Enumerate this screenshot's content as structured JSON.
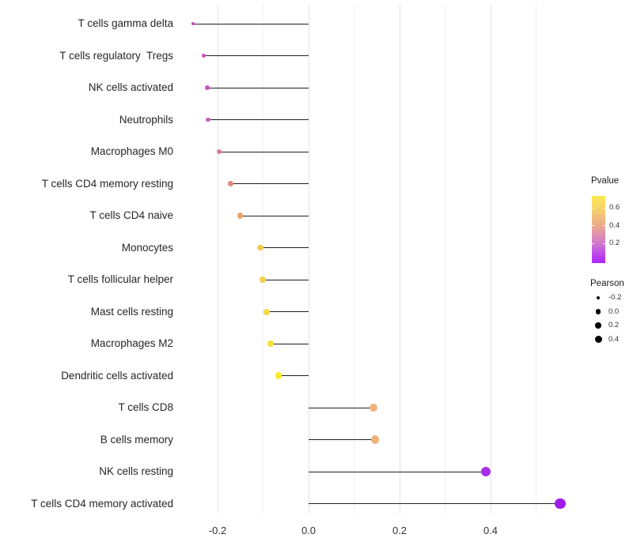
{
  "chart_data": {
    "type": "scatter",
    "variant": "lollipop",
    "title": "",
    "xlabel": "",
    "ylabel": "",
    "xlim": [
      -0.27,
      0.62
    ],
    "grid": "major and minor vertical gridlines, light gray, no axis lines, white background",
    "x_tick_labels": [
      "-0.2",
      "0.0",
      "0.2",
      "0.4"
    ],
    "x_tick_values": [
      -0.2,
      0.0,
      0.2,
      0.4
    ],
    "x_minor_tick_values": [
      -0.1,
      0.1,
      0.3,
      0.5
    ],
    "stem_color": "#1f1f1f",
    "categories": [
      "T cells gamma delta",
      "T cells regulatory  Tregs",
      "NK cells activated",
      "Neutrophils",
      "Macrophages M0",
      "T cells CD4 memory resting",
      "T cells CD4 naive",
      "Monocytes",
      "T cells follicular helper",
      "Mast cells resting",
      "Macrophages M2",
      "Dendritic cells activated",
      "T cells CD8",
      "B cells memory",
      "NK cells resting",
      "T cells CD4 memory activated"
    ],
    "series": [
      {
        "name": "Pearson",
        "values": [
          -0.25,
          -0.23,
          -0.22,
          -0.22,
          -0.2,
          -0.17,
          -0.15,
          -0.11,
          -0.1,
          -0.09,
          -0.08,
          -0.07,
          0.14,
          0.15,
          0.39,
          0.55
        ]
      },
      {
        "name": "Pvalue (estimated from color)",
        "values": [
          0.22,
          0.23,
          0.24,
          0.25,
          0.33,
          0.4,
          0.47,
          0.57,
          0.59,
          0.62,
          0.65,
          0.7,
          0.5,
          0.5,
          0.06,
          0.03
        ]
      }
    ],
    "points": [
      {
        "label": "T cells gamma delta",
        "pearson": -0.254,
        "pvalue": 0.22,
        "color": "#C04BBC",
        "radius": 2.2
      },
      {
        "label": "T cells regulatory  Tregs",
        "pearson": -0.23,
        "pvalue": 0.23,
        "color": "#C553BE",
        "radius": 2.6
      },
      {
        "label": "NK cells activated",
        "pearson": -0.223,
        "pvalue": 0.24,
        "color": "#C757BD",
        "radius": 2.8
      },
      {
        "label": "Neutrophils",
        "pearson": -0.221,
        "pvalue": 0.25,
        "color": "#C85FBA",
        "radius": 2.8
      },
      {
        "label": "Macrophages M0",
        "pearson": -0.196,
        "pvalue": 0.33,
        "color": "#D1799F",
        "radius": 3.1
      },
      {
        "label": "T cells CD4 memory resting",
        "pearson": -0.171,
        "pvalue": 0.4,
        "color": "#E08A81",
        "radius": 3.4
      },
      {
        "label": "T cells CD4 naive",
        "pearson": -0.15,
        "pvalue": 0.47,
        "color": "#ECA168",
        "radius": 3.6
      },
      {
        "label": "Monocytes",
        "pearson": -0.106,
        "pvalue": 0.57,
        "color": "#F2C94F",
        "radius": 3.8
      },
      {
        "label": "T cells follicular helper",
        "pearson": -0.101,
        "pvalue": 0.59,
        "color": "#F3D04A",
        "radius": 3.9
      },
      {
        "label": "Mast cells resting",
        "pearson": -0.092,
        "pvalue": 0.62,
        "color": "#F5D93F",
        "radius": 4.0
      },
      {
        "label": "Macrophages M2",
        "pearson": -0.083,
        "pvalue": 0.65,
        "color": "#F6E135",
        "radius": 4.1
      },
      {
        "label": "Dendritic cells activated",
        "pearson": -0.066,
        "pvalue": 0.7,
        "color": "#F8ED27",
        "radius": 4.3
      },
      {
        "label": "T cells CD8",
        "pearson": 0.143,
        "pvalue": 0.5,
        "color": "#EFB07D",
        "radius": 5.0
      },
      {
        "label": "B cells memory",
        "pearson": 0.146,
        "pvalue": 0.5,
        "color": "#EFB17C",
        "radius": 5.1
      },
      {
        "label": "NK cells resting",
        "pearson": 0.389,
        "pvalue": 0.06,
        "color": "#A82CE8",
        "radius": 6.0
      },
      {
        "label": "T cells CD4 memory activated",
        "pearson": 0.553,
        "pvalue": 0.03,
        "color": "#9E1BE8",
        "radius": 6.6
      }
    ]
  },
  "legend": {
    "pvalue": {
      "title": "Pvalue",
      "gradient_stops": [
        "#FBEA4F",
        "#F6D26B",
        "#ECA98E",
        "#D078CC",
        "#BB45EE",
        "#AC26F5"
      ],
      "gradient_positions": [
        0,
        19,
        45,
        71,
        88,
        100
      ],
      "ticks": [
        {
          "label": "0.6",
          "value": 0.6
        },
        {
          "label": "0.4",
          "value": 0.4
        },
        {
          "label": "0.2",
          "value": 0.2
        }
      ],
      "domain_top": 0.73,
      "domain_bottom": -0.025
    },
    "pearson": {
      "title": "Pearson",
      "dot_color": "#000000",
      "entries": [
        {
          "label": "-0.2",
          "diameter": 4.5
        },
        {
          "label": "0.0",
          "diameter": 6.5
        },
        {
          "label": "0.2",
          "diameter": 7.5
        },
        {
          "label": "0.4",
          "diameter": 9.0
        }
      ]
    }
  }
}
